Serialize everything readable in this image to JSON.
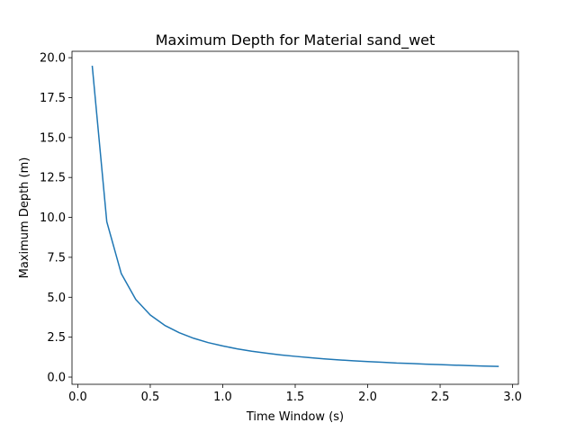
{
  "chart_data": {
    "type": "line",
    "title": "Maximum Depth for Material sand_wet",
    "xlabel": "Time Window (s)",
    "ylabel": "Maximum Depth (m)",
    "xlim": [
      -0.04,
      3.04
    ],
    "ylim": [
      -0.45,
      20.4
    ],
    "xticks": [
      0.0,
      0.5,
      1.0,
      1.5,
      2.0,
      2.5,
      3.0
    ],
    "xtick_labels": [
      "0.0",
      "0.5",
      "1.0",
      "1.5",
      "2.0",
      "2.5",
      "3.0"
    ],
    "yticks": [
      0.0,
      2.5,
      5.0,
      7.5,
      10.0,
      12.5,
      15.0,
      17.5,
      20.0
    ],
    "ytick_labels": [
      "0.0",
      "2.5",
      "5.0",
      "7.5",
      "10.0",
      "12.5",
      "15.0",
      "17.5",
      "20.0"
    ],
    "grid": false,
    "line_color": "#1f77b4",
    "series": [
      {
        "x": [
          0.1,
          0.2,
          0.3,
          0.4,
          0.5,
          0.6,
          0.7,
          0.8,
          0.9,
          1.0,
          1.1,
          1.2,
          1.3,
          1.4,
          1.5,
          1.6,
          1.7,
          1.8,
          1.9,
          2.0,
          2.1,
          2.2,
          2.3,
          2.4,
          2.5,
          2.6,
          2.7,
          2.8,
          2.9
        ],
        "values": [
          19.45,
          9.73,
          6.48,
          4.86,
          3.89,
          3.24,
          2.78,
          2.43,
          2.16,
          1.95,
          1.77,
          1.62,
          1.5,
          1.39,
          1.3,
          1.22,
          1.14,
          1.08,
          1.02,
          0.97,
          0.93,
          0.88,
          0.85,
          0.81,
          0.78,
          0.75,
          0.72,
          0.69,
          0.67
        ]
      }
    ]
  }
}
